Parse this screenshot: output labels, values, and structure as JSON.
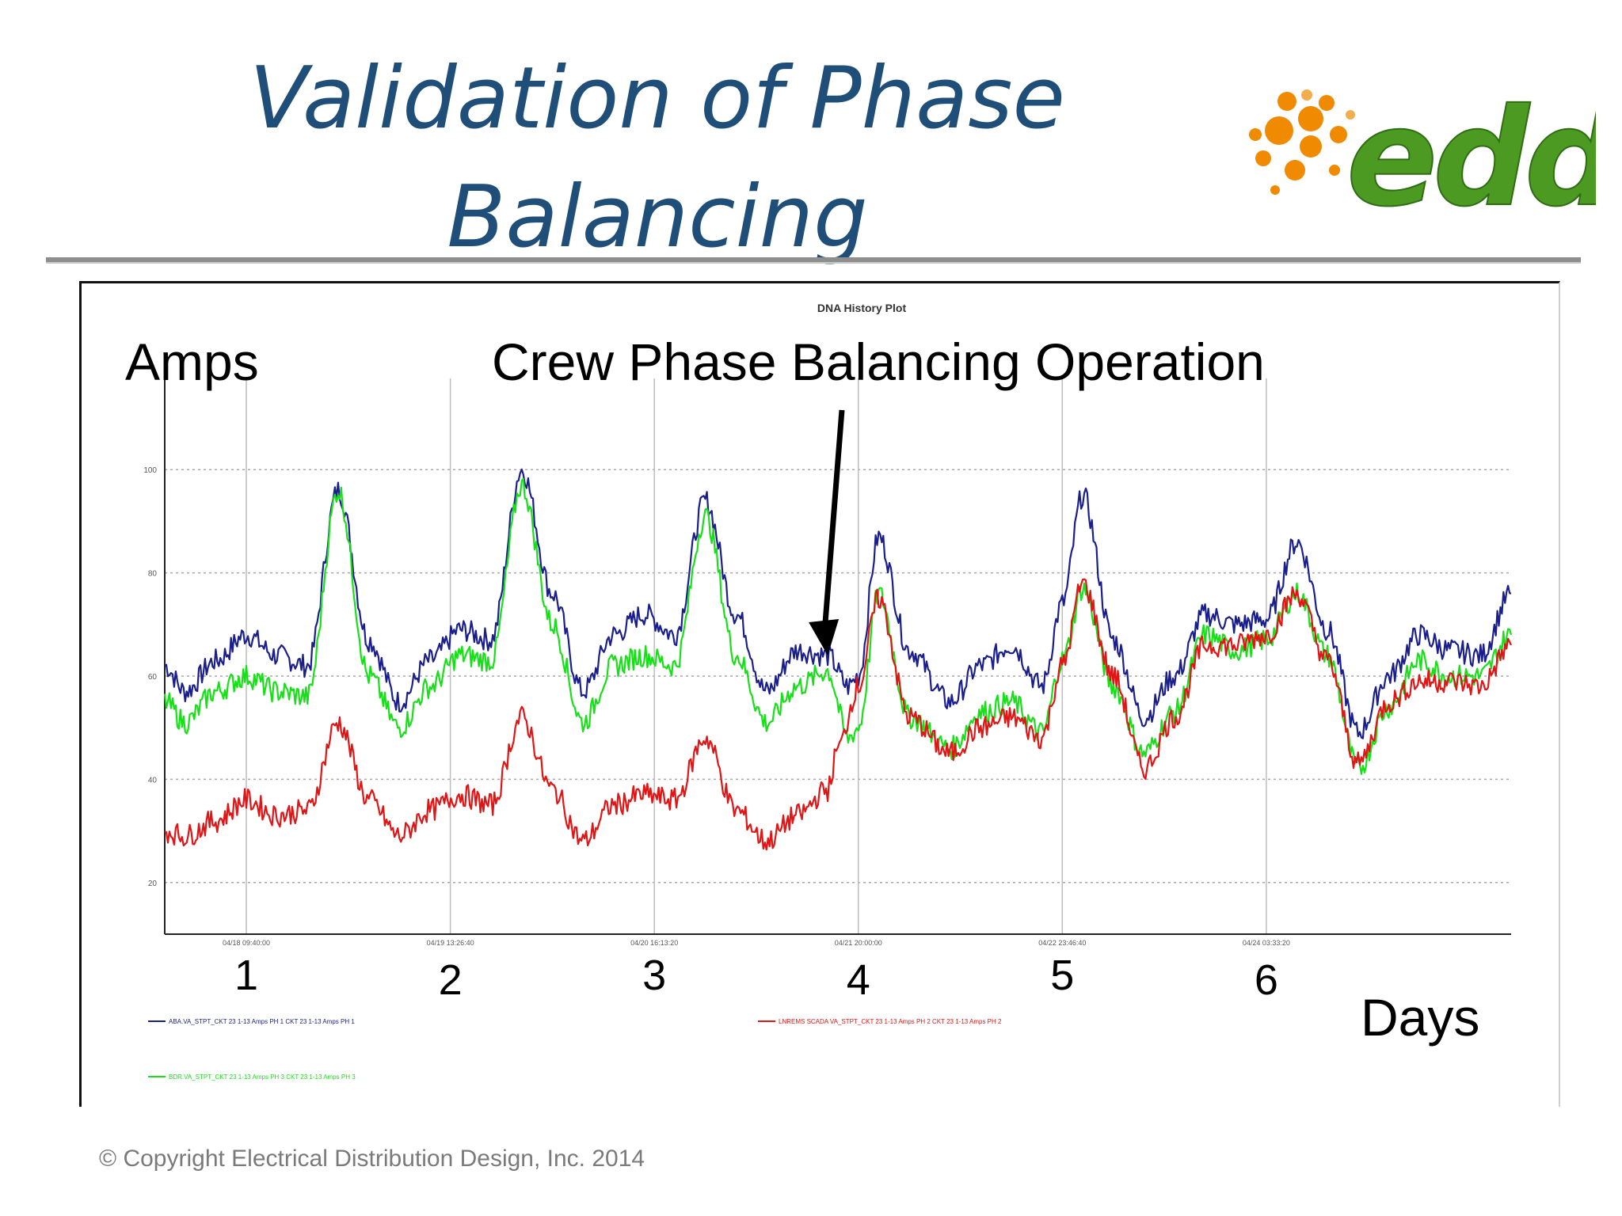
{
  "slide": {
    "title_line1": "Validation of Phase",
    "title_line2": "Balancing",
    "logo_text": "edd",
    "footer": "© Copyright Electrical Distribution Design, Inc. 2014"
  },
  "colors": {
    "title": "#1f4e79",
    "phase1": "#1a1f8c",
    "phase2": "#e01515",
    "phase3": "#18e018",
    "logo_green": "#4c9a22",
    "logo_orange": "#f08a00"
  },
  "chart_data": {
    "type": "line",
    "title": "DNA History Plot",
    "ylabel": "Amps",
    "xlabel": "Days",
    "annotation": "Crew Phase Balancing Operation",
    "annotation_x": 3.85,
    "ylim": [
      10,
      110
    ],
    "xlim": [
      0.6,
      7.2
    ],
    "yticks": [
      20,
      40,
      60,
      80,
      100
    ],
    "ytick_labels": [
      "20",
      "40",
      "60",
      "80",
      "100"
    ],
    "xticks": [
      1,
      2,
      3,
      4,
      5,
      6
    ],
    "xtick_labels": [
      "1",
      "2",
      "3",
      "4",
      "5",
      "6"
    ],
    "x_timestamp_labels": [
      "04/18 09:40:00",
      "04/19 13:26:40",
      "04/20 16:13:20",
      "04/21 20:00:00",
      "04/22 23:46:40",
      "04/24 03:33:20"
    ],
    "grid": true,
    "series": [
      {
        "name": "ABA.VA_STPT_CKT 23 1-13 Amps PH 1 CKT 23 1-13 Amps PH 1",
        "color_key": "phase1",
        "x": [
          0.6,
          0.7,
          0.85,
          1.0,
          1.15,
          1.3,
          1.45,
          1.6,
          1.75,
          1.9,
          2.05,
          2.2,
          2.35,
          2.5,
          2.65,
          2.8,
          2.95,
          3.1,
          3.25,
          3.4,
          3.55,
          3.7,
          3.85,
          3.95,
          4.0,
          4.1,
          4.25,
          4.45,
          4.6,
          4.75,
          4.9,
          5.0,
          5.1,
          5.25,
          5.4,
          5.55,
          5.7,
          5.85,
          6.0,
          6.15,
          6.3,
          6.45,
          6.6,
          6.75,
          6.9,
          7.05,
          7.2
        ],
        "y": [
          62,
          57,
          63,
          68,
          64,
          62,
          96,
          67,
          55,
          63,
          69,
          67,
          100,
          76,
          57,
          68,
          72,
          68,
          94,
          72,
          57,
          65,
          64,
          58,
          60,
          87,
          65,
          55,
          62,
          66,
          58,
          74,
          95,
          67,
          52,
          60,
          72,
          70,
          71,
          86,
          69,
          49,
          60,
          68,
          65,
          64,
          76
        ]
      },
      {
        "name": "LNREMS SCADA VA_STPT_CKT 23 1-13 Amps PH 2 CKT 23 1-13 Amps PH 2",
        "color_key": "phase2",
        "x": [
          0.6,
          0.7,
          0.85,
          1.0,
          1.15,
          1.3,
          1.45,
          1.6,
          1.75,
          1.9,
          2.05,
          2.2,
          2.35,
          2.5,
          2.65,
          2.8,
          2.95,
          3.1,
          3.25,
          3.4,
          3.55,
          3.7,
          3.85,
          3.9,
          4.0,
          4.1,
          4.25,
          4.45,
          4.6,
          4.75,
          4.9,
          5.0,
          5.1,
          5.25,
          5.4,
          5.55,
          5.7,
          5.85,
          6.0,
          6.15,
          6.3,
          6.45,
          6.6,
          6.75,
          6.9,
          7.05,
          7.2
        ],
        "y": [
          30,
          29,
          32,
          36,
          33,
          34,
          51,
          36,
          29,
          34,
          37,
          35,
          52,
          38,
          28,
          35,
          37,
          36,
          48,
          34,
          28,
          33,
          38,
          46,
          58,
          75,
          52,
          45,
          50,
          52,
          48,
          62,
          78,
          60,
          42,
          52,
          66,
          66,
          68,
          76,
          63,
          43,
          55,
          59,
          59,
          58,
          66
        ]
      },
      {
        "name": "BDR.VA_STPT_CKT 23 1-13 Amps PH 3 CKT 23 1-13 Amps PH 3",
        "color_key": "phase3",
        "x": [
          0.6,
          0.7,
          0.85,
          1.0,
          1.15,
          1.3,
          1.45,
          1.6,
          1.75,
          1.9,
          2.05,
          2.2,
          2.35,
          2.5,
          2.65,
          2.8,
          2.95,
          3.1,
          3.25,
          3.4,
          3.55,
          3.7,
          3.85,
          3.95,
          4.0,
          4.1,
          4.25,
          4.45,
          4.6,
          4.75,
          4.9,
          5.0,
          5.1,
          5.25,
          5.4,
          5.55,
          5.7,
          5.85,
          6.0,
          6.15,
          6.3,
          6.45,
          6.6,
          6.75,
          6.9,
          7.05,
          7.2
        ],
        "y": [
          55,
          51,
          57,
          60,
          57,
          56,
          96,
          60,
          50,
          58,
          64,
          63,
          97,
          70,
          51,
          62,
          64,
          62,
          91,
          64,
          51,
          58,
          61,
          48,
          50,
          76,
          52,
          46,
          53,
          55,
          49,
          63,
          77,
          58,
          45,
          53,
          68,
          65,
          67,
          76,
          64,
          42,
          54,
          63,
          60,
          60,
          68
        ]
      }
    ],
    "legend_placement": "bottom"
  }
}
